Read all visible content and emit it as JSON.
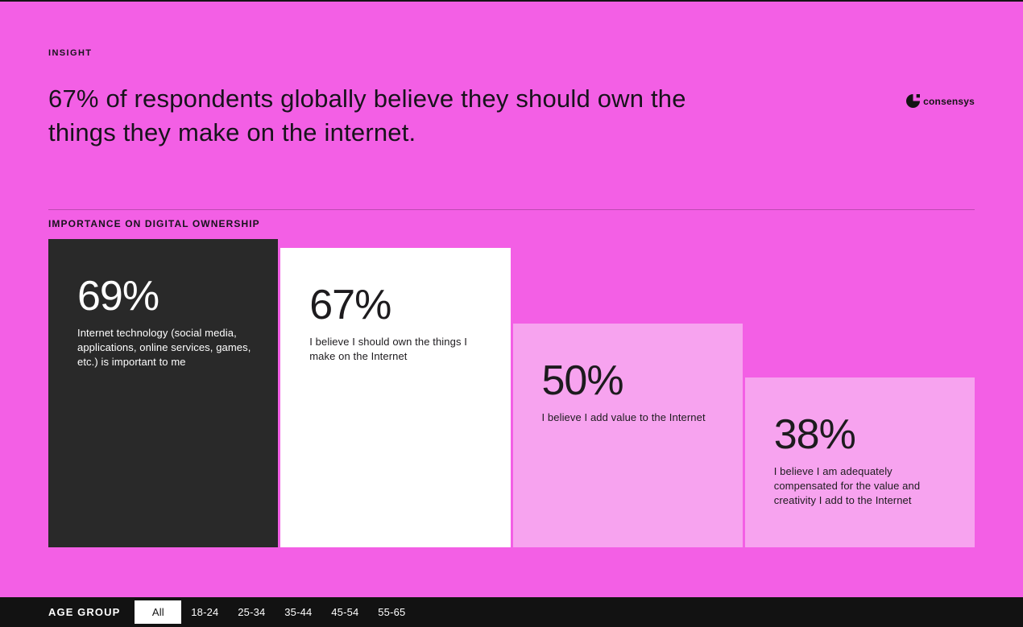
{
  "header": {
    "eyebrow": "INSIGHT",
    "headline": "67% of respondents globally believe they should own the things they make on the internet.",
    "logo_text": "consensys"
  },
  "chart": {
    "section_label": "IMPORTANCE ON DIGITAL OWNERSHIP"
  },
  "chart_data": {
    "type": "bar",
    "title": "IMPORTANCE ON DIGITAL OWNERSHIP",
    "unit": "percent of respondents",
    "ylim": [
      0,
      100
    ],
    "categories": [
      "Internet technology (social media, applications, online services, games, etc.) is important to me",
      "I believe I should own the things I make on the Internet",
      "I believe I add value to the Internet",
      "I believe I am adequately compensated for the value and creativity I add to the Internet"
    ],
    "values": [
      69,
      67,
      50,
      38
    ],
    "value_labels": [
      "69%",
      "67%",
      "50%",
      "38%"
    ],
    "bar_colors": [
      "#292929",
      "#ffffff",
      "#f7a3ef",
      "#f7a3ef"
    ],
    "label_colors": [
      "#ffffff",
      "#1d1b1e",
      "#1d1b1e",
      "#1d1b1e"
    ],
    "legend": null,
    "grid": false,
    "orientation": "vertical",
    "filter_applied": "Age group: All"
  },
  "age_filter": {
    "label": "AGE GROUP",
    "options": [
      "All",
      "18-24",
      "25-34",
      "35-44",
      "45-54",
      "55-65"
    ],
    "selected": "All"
  },
  "colors": {
    "background": "#f35fe5",
    "card_light": "#f7a3ef",
    "card_dark": "#292929",
    "footer_bar": "#121212",
    "text_dark": "#17131b",
    "text_light": "#ffffff"
  }
}
